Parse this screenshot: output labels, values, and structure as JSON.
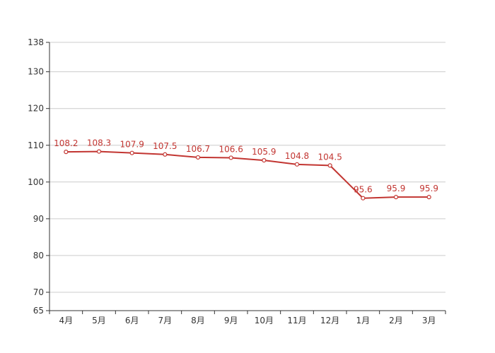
{
  "chart_data": {
    "type": "line",
    "categories": [
      "4月",
      "5月",
      "6月",
      "7月",
      "8月",
      "9月",
      "10月",
      "11月",
      "12月",
      "1月",
      "2月",
      "3月"
    ],
    "series": [
      {
        "values": [
          108.2,
          108.3,
          107.9,
          107.5,
          106.7,
          106.6,
          105.9,
          104.8,
          104.5,
          95.6,
          95.9,
          95.9
        ],
        "color": "#c23531"
      }
    ],
    "data_labels": [
      "108.2",
      "108.3",
      "107.9",
      "107.5",
      "106.7",
      "106.6",
      "105.9",
      "104.8",
      "104.5",
      "95.6",
      "95.9",
      "95.9"
    ],
    "ylim": [
      65,
      138
    ],
    "yticks": [
      65,
      70,
      80,
      90,
      100,
      110,
      120,
      130,
      138
    ],
    "ytick_labels": [
      "65",
      "70",
      "80",
      "90",
      "100",
      "110",
      "120",
      "130",
      "138"
    ],
    "grid": true,
    "title": "",
    "xlabel": "",
    "ylabel": ""
  }
}
